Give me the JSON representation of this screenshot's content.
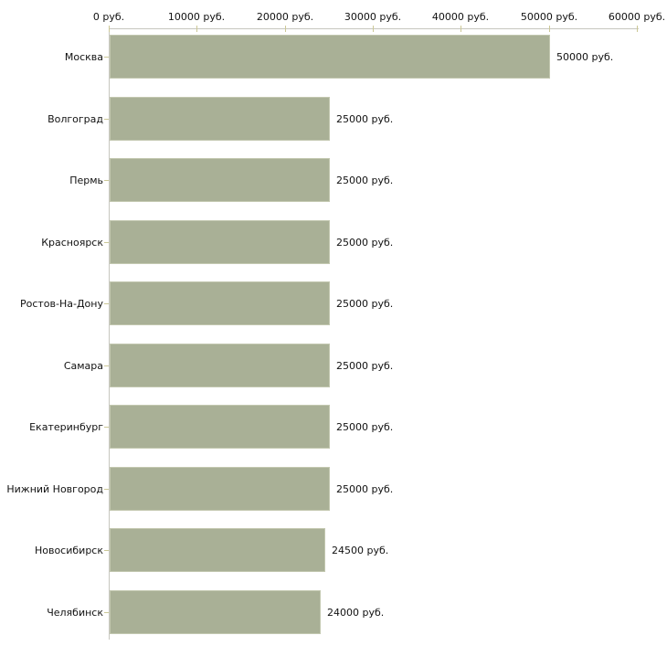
{
  "chart_data": {
    "type": "bar",
    "orientation": "horizontal",
    "title": "",
    "xlabel": "",
    "ylabel": "",
    "grid": false,
    "legend": false,
    "xlim": [
      0,
      60000
    ],
    "x_ticks": [
      0,
      10000,
      20000,
      30000,
      40000,
      50000,
      60000
    ],
    "x_tick_labels": [
      "0 руб.",
      "10000 руб.",
      "20000 руб.",
      "30000 руб.",
      "40000 руб.",
      "50000 руб.",
      "60000 руб."
    ],
    "categories": [
      "Москва",
      "Волгоград",
      "Пермь",
      "Красноярск",
      "Ростов-На-Дону",
      "Самара",
      "Екатеринбург",
      "Нижний Новгород",
      "Новосибирск",
      "Челябинск"
    ],
    "values": [
      50000,
      25000,
      25000,
      25000,
      25000,
      25000,
      25000,
      25000,
      24500,
      24000
    ],
    "value_labels": [
      "50000 руб.",
      "25000 руб.",
      "25000 руб.",
      "25000 руб.",
      "25000 руб.",
      "25000 руб.",
      "25000 руб.",
      "25000 руб.",
      "24500 руб.",
      "24000 руб."
    ],
    "unit_suffix": " руб.",
    "colors": {
      "bar_fill": "#a9b096",
      "bar_edge": "#c3c8b0",
      "axis_line": "#c7c7bf",
      "tick_mark": "#ccc896",
      "text": "#111111",
      "background": "#ffffff"
    }
  }
}
